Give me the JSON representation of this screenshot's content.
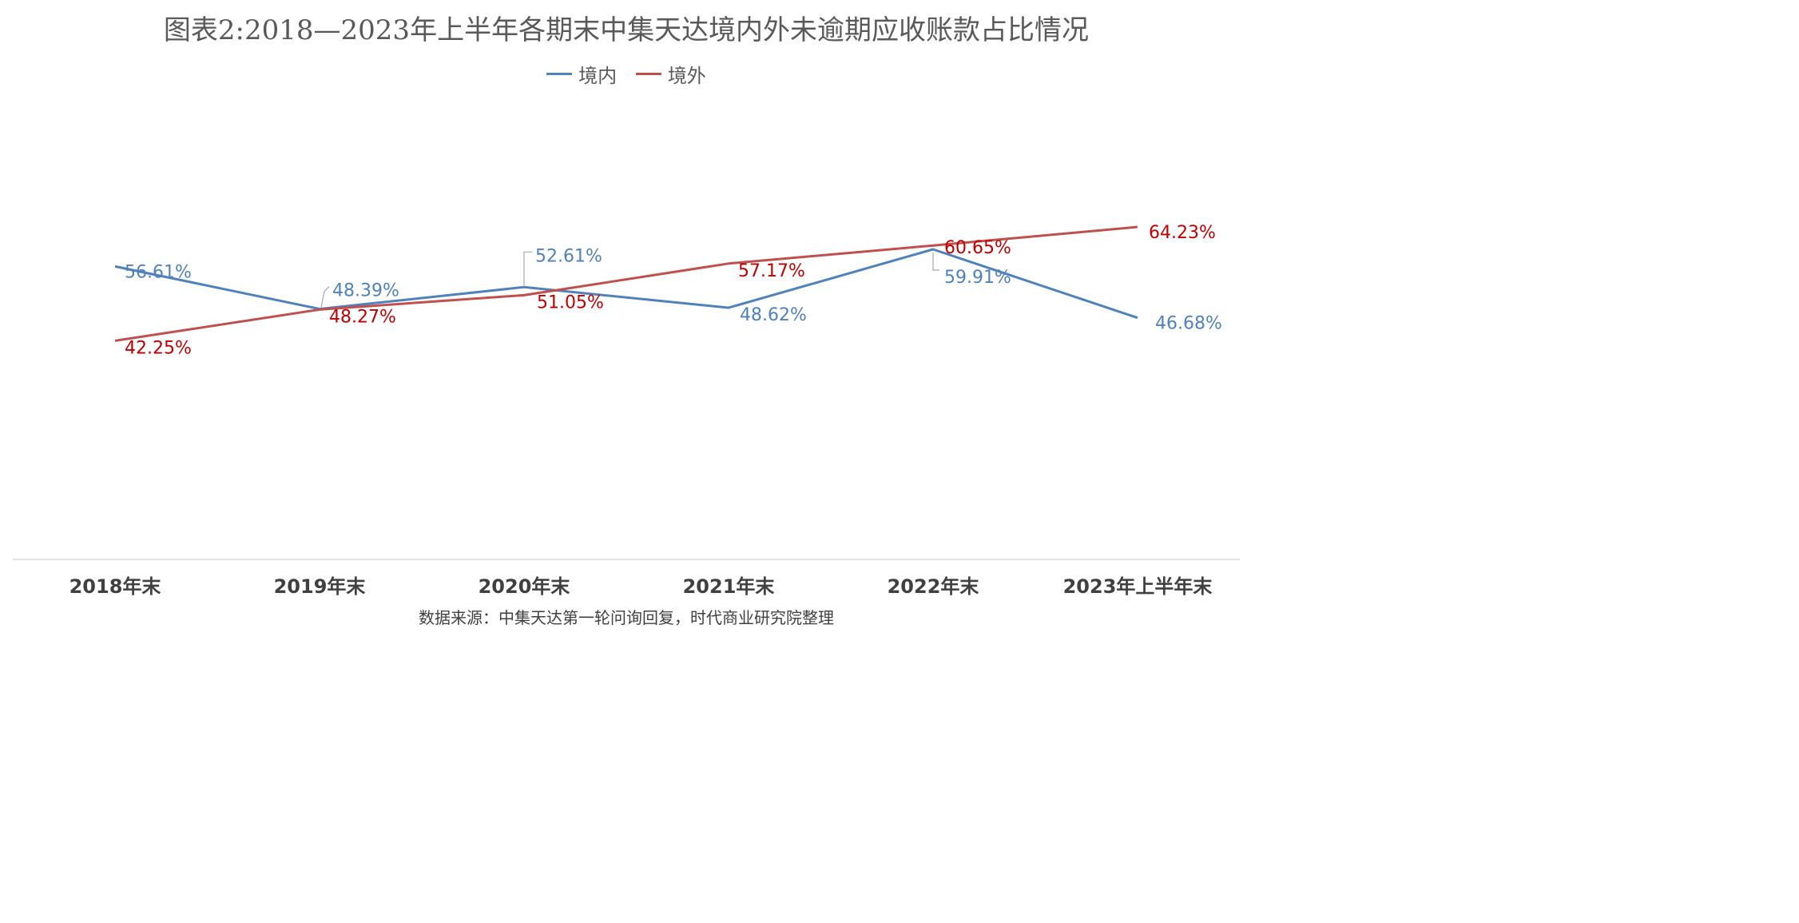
{
  "title": "图表2:2018—2023年上半年各期末中集天达境内外未逾期应收账款占比情况",
  "source": "数据来源：中集天达第一轮问询回复，时代商业研究院整理",
  "colors": {
    "domestic": "#4F81BD",
    "overseas": "#C0504D",
    "domestic_label": "#4F81BD",
    "overseas_label": "#C00000",
    "axis": "#D9D9D9",
    "category_text": "#404040",
    "leader": "#A6A6A6"
  },
  "legend": {
    "domestic": "境内",
    "overseas": "境外"
  },
  "chart_data": {
    "type": "line",
    "title": "图表2:2018—2023年上半年各期末中集天达境内外未逾期应收账款占比情况",
    "categories": [
      "2018年末",
      "2019年末",
      "2020年末",
      "2021年末",
      "2022年末",
      "2023年上半年末"
    ],
    "series": [
      {
        "name": "境内",
        "values": [
          56.61,
          48.39,
          52.61,
          48.62,
          59.91,
          46.68
        ],
        "labels": [
          "56.61%",
          "48.39%",
          "52.61%",
          "48.62%",
          "59.91%",
          "46.68%"
        ]
      },
      {
        "name": "境外",
        "values": [
          42.25,
          48.27,
          51.05,
          57.17,
          60.65,
          64.23
        ],
        "labels": [
          "42.25%",
          "48.27%",
          "51.05%",
          "57.17%",
          "60.65%",
          "64.23%"
        ]
      }
    ],
    "legend_position": "top",
    "grid": false,
    "unit": "%"
  }
}
